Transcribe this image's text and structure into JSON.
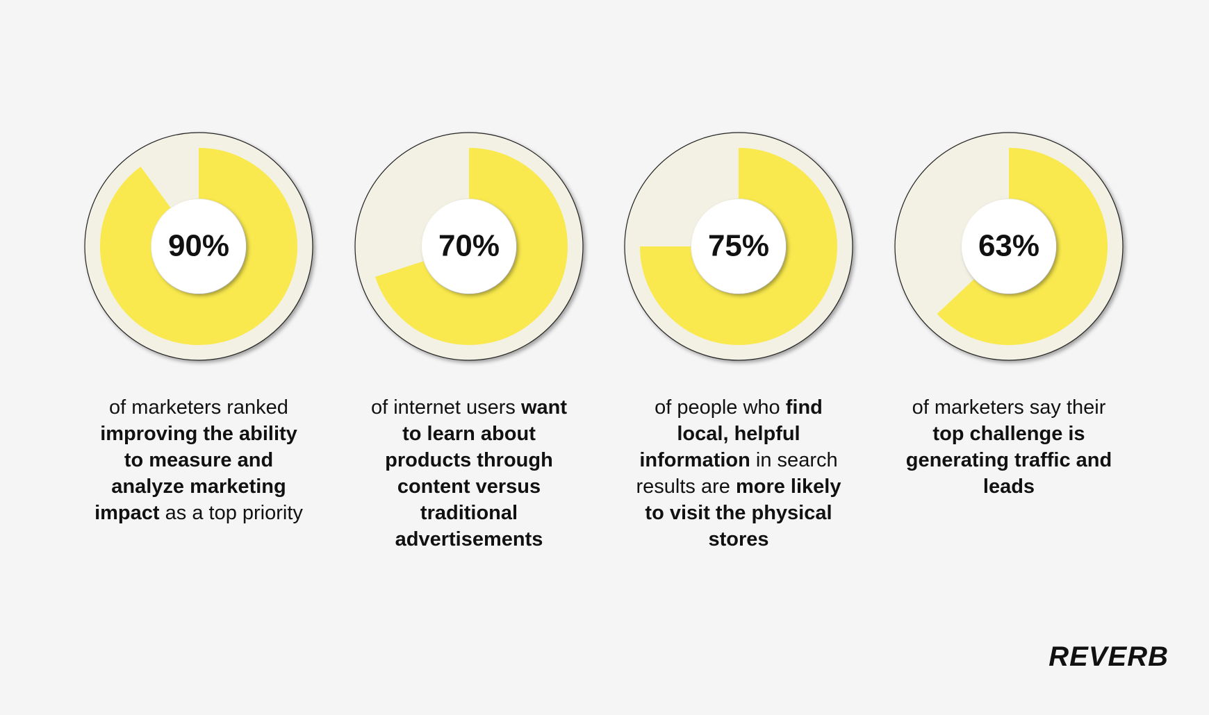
{
  "chart_data": [
    {
      "type": "donut",
      "values": [
        90
      ],
      "value_labels": [
        "90%"
      ],
      "color": "#f9e94e",
      "track_color": "#f2f1e3",
      "caption": [
        {
          "text": "of marketers ranked ",
          "bold": false
        },
        {
          "text": "improving the ability to measure and analyze marketing impact",
          "bold": true
        },
        {
          "text": " as a top priority",
          "bold": false
        }
      ]
    },
    {
      "type": "donut",
      "values": [
        70
      ],
      "value_labels": [
        "70%"
      ],
      "color": "#f9e94e",
      "track_color": "#f2f1e3",
      "caption": [
        {
          "text": "of internet users ",
          "bold": false
        },
        {
          "text": "want to learn about products through content versus traditional advertisements",
          "bold": true
        }
      ]
    },
    {
      "type": "donut",
      "values": [
        75
      ],
      "value_labels": [
        "75%"
      ],
      "color": "#f9e94e",
      "track_color": "#f2f1e3",
      "caption": [
        {
          "text": "of people who ",
          "bold": false
        },
        {
          "text": "find local, helpful information",
          "bold": true
        },
        {
          "text": " in search results are ",
          "bold": false
        },
        {
          "text": "more likely to visit the physical stores",
          "bold": true
        }
      ]
    },
    {
      "type": "donut",
      "values": [
        63
      ],
      "value_labels": [
        "63%"
      ],
      "color": "#f9e94e",
      "track_color": "#f2f1e3",
      "caption": [
        {
          "text": "of marketers say their ",
          "bold": false
        },
        {
          "text": "top challenge is generating traffic and leads",
          "bold": true
        }
      ]
    }
  ],
  "brand": "REVERB"
}
